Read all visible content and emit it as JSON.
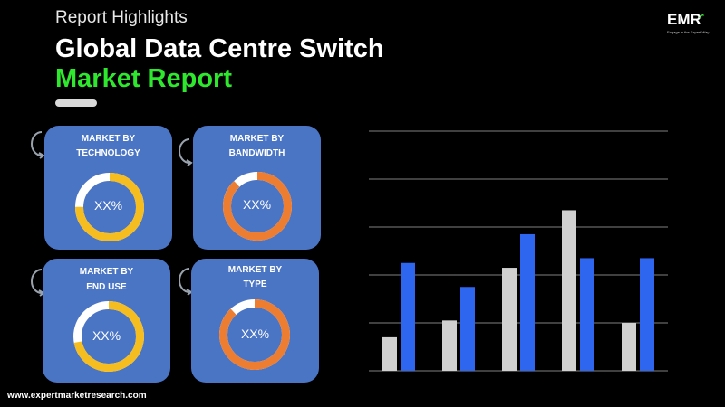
{
  "header": {
    "subtitle": "Report Highlights",
    "title_line1": "Global Data Centre Switch",
    "title_line2": "Market Report"
  },
  "logo": {
    "text": "EMR",
    "tagline": "Engage in the Expert Way"
  },
  "cards": [
    {
      "line1": "MARKET BY",
      "line2": "TECHNOLOGY",
      "value": "XX%",
      "ring_color": "#f5bd1f",
      "ring_fill": 0.75
    },
    {
      "line1": "MARKET BY",
      "line2": "BANDWIDTH",
      "value": "XX%",
      "ring_color": "#ed7d31",
      "ring_fill": 0.88
    },
    {
      "line1": "MARKET BY",
      "line2": "END USE",
      "value": "XX%",
      "ring_color": "#f5bd1f",
      "ring_fill": 0.72
    },
    {
      "line1": "MARKET BY",
      "line2": "TYPE",
      "value": "XX%",
      "ring_color": "#ed7d31",
      "ring_fill": 0.88
    }
  ],
  "chart_data": {
    "type": "bar",
    "categories": [
      "",
      "",
      "",
      "",
      ""
    ],
    "series": [
      {
        "color": "#d0d0d0",
        "values": [
          0.7,
          1.05,
          2.15,
          3.35,
          1.0
        ]
      },
      {
        "color": "#2f66f0",
        "values": [
          2.25,
          1.75,
          2.85,
          2.35,
          2.35
        ]
      }
    ],
    "ylim": [
      0,
      5
    ],
    "grid": true,
    "legend": "none",
    "colors": {
      "gridline": "#7f7f7f",
      "background": "#000000"
    }
  },
  "footer": {
    "url": "www.expertmarketresearch.com"
  },
  "colors": {
    "accent_green": "#2ee82e",
    "card_blue": "#4a74c4",
    "ring_track": "#ffffff"
  }
}
